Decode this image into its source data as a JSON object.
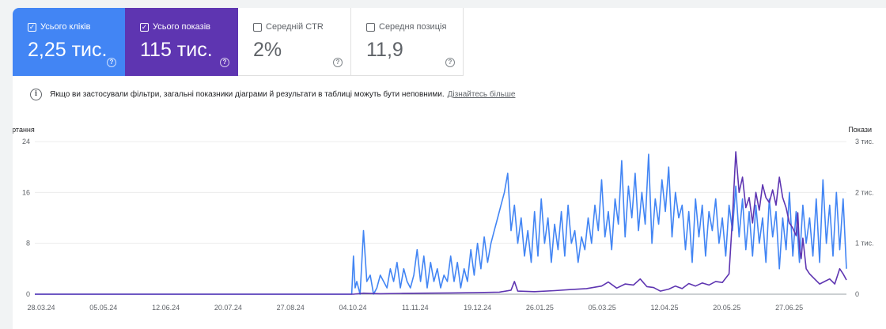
{
  "metrics": [
    {
      "label": "Усього кліків",
      "value": "2,25 тис.",
      "checked": true,
      "color": "#4285f4"
    },
    {
      "label": "Усього показів",
      "value": "115 тис.",
      "checked": true,
      "color": "#5e35b1"
    },
    {
      "label": "Середній CTR",
      "value": "2%",
      "checked": false
    },
    {
      "label": "Середня позиція",
      "value": "11,9",
      "checked": false
    }
  ],
  "notice": {
    "text": "Якщо ви застосували фільтри, загальні показники діаграми й результати в таблиці можуть бути неповними.",
    "link": "Дізнайтесь більше"
  },
  "chart_data": {
    "type": "line",
    "left_axis": {
      "label": "Звертання",
      "ticks": [
        "0",
        "8",
        "16",
        "24"
      ],
      "values": [
        0,
        8,
        16,
        24
      ],
      "ylim": [
        0,
        24
      ]
    },
    "right_axis": {
      "label": "Покази",
      "ticks": [
        "0",
        "1 тис.",
        "2 тис.",
        "3 тис."
      ],
      "values": [
        0,
        1000,
        2000,
        3000
      ],
      "ylim": [
        0,
        3000
      ]
    },
    "x_ticks": [
      "28.03.24",
      "05.05.24",
      "12.06.24",
      "20.07.24",
      "27.08.24",
      "04.10.24",
      "11.11.24",
      "19.12.24",
      "26.01.25",
      "05.03.25",
      "12.04.25",
      "20.05.25",
      "27.06.25"
    ],
    "x_range": [
      "2024-03-28",
      "2025-07-25"
    ],
    "grid": true,
    "series": [
      {
        "name": "Усього кліків",
        "axis": "left",
        "color": "#4285f4",
        "points": [
          [
            "2024-03-28",
            0
          ],
          [
            "2024-10-03",
            0
          ],
          [
            "2024-10-04",
            6
          ],
          [
            "2024-10-05",
            1
          ],
          [
            "2024-10-06",
            2
          ],
          [
            "2024-10-08",
            0
          ],
          [
            "2024-10-10",
            10
          ],
          [
            "2024-10-12",
            2
          ],
          [
            "2024-10-14",
            3
          ],
          [
            "2024-10-16",
            0
          ],
          [
            "2024-10-18",
            1
          ],
          [
            "2024-10-20",
            3
          ],
          [
            "2024-10-22",
            2
          ],
          [
            "2024-10-24",
            1
          ],
          [
            "2024-10-26",
            4
          ],
          [
            "2024-10-28",
            2
          ],
          [
            "2024-10-30",
            5
          ],
          [
            "2024-11-01",
            1
          ],
          [
            "2024-11-03",
            4
          ],
          [
            "2024-11-05",
            2
          ],
          [
            "2024-11-07",
            1
          ],
          [
            "2024-11-09",
            3
          ],
          [
            "2024-11-11",
            7
          ],
          [
            "2024-11-13",
            2
          ],
          [
            "2024-11-15",
            6
          ],
          [
            "2024-11-17",
            1
          ],
          [
            "2024-11-19",
            5
          ],
          [
            "2024-11-21",
            2
          ],
          [
            "2024-11-23",
            4
          ],
          [
            "2024-11-25",
            1
          ],
          [
            "2024-11-27",
            3
          ],
          [
            "2024-11-29",
            2
          ],
          [
            "2024-12-01",
            6
          ],
          [
            "2024-12-03",
            2
          ],
          [
            "2024-12-05",
            5
          ],
          [
            "2024-12-07",
            1
          ],
          [
            "2024-12-09",
            4
          ],
          [
            "2024-12-11",
            2
          ],
          [
            "2024-12-13",
            7
          ],
          [
            "2024-12-15",
            3
          ],
          [
            "2024-12-17",
            8
          ],
          [
            "2024-12-19",
            4
          ],
          [
            "2024-12-21",
            9
          ],
          [
            "2024-12-23",
            5
          ],
          [
            "2024-12-25",
            8
          ],
          [
            "2024-12-27",
            10
          ],
          [
            "2024-12-29",
            12
          ],
          [
            "2024-12-31",
            14
          ],
          [
            "2025-01-02",
            16
          ],
          [
            "2025-01-04",
            19
          ],
          [
            "2025-01-06",
            10
          ],
          [
            "2025-01-08",
            14
          ],
          [
            "2025-01-10",
            8
          ],
          [
            "2025-01-12",
            12
          ],
          [
            "2025-01-14",
            6
          ],
          [
            "2025-01-16",
            10
          ],
          [
            "2025-01-18",
            5
          ],
          [
            "2025-01-20",
            13
          ],
          [
            "2025-01-22",
            6
          ],
          [
            "2025-01-24",
            15
          ],
          [
            "2025-01-26",
            8
          ],
          [
            "2025-01-28",
            12
          ],
          [
            "2025-01-30",
            5
          ],
          [
            "2025-02-01",
            11
          ],
          [
            "2025-02-03",
            7
          ],
          [
            "2025-02-05",
            13
          ],
          [
            "2025-02-07",
            6
          ],
          [
            "2025-02-09",
            14
          ],
          [
            "2025-02-11",
            8
          ],
          [
            "2025-02-13",
            10
          ],
          [
            "2025-02-15",
            5
          ],
          [
            "2025-02-17",
            9
          ],
          [
            "2025-02-19",
            7
          ],
          [
            "2025-02-21",
            12
          ],
          [
            "2025-02-23",
            8
          ],
          [
            "2025-02-25",
            14
          ],
          [
            "2025-02-27",
            10
          ],
          [
            "2025-03-01",
            18
          ],
          [
            "2025-03-03",
            9
          ],
          [
            "2025-03-05",
            13
          ],
          [
            "2025-03-07",
            7
          ],
          [
            "2025-03-09",
            15
          ],
          [
            "2025-03-11",
            11
          ],
          [
            "2025-03-13",
            21
          ],
          [
            "2025-03-15",
            9
          ],
          [
            "2025-03-17",
            17
          ],
          [
            "2025-03-19",
            12
          ],
          [
            "2025-03-21",
            19
          ],
          [
            "2025-03-23",
            10
          ],
          [
            "2025-03-25",
            16
          ],
          [
            "2025-03-27",
            11
          ],
          [
            "2025-03-29",
            22
          ],
          [
            "2025-03-31",
            8
          ],
          [
            "2025-04-02",
            15
          ],
          [
            "2025-04-04",
            11
          ],
          [
            "2025-04-06",
            18
          ],
          [
            "2025-04-08",
            13
          ],
          [
            "2025-04-10",
            20
          ],
          [
            "2025-04-12",
            9
          ],
          [
            "2025-04-14",
            16
          ],
          [
            "2025-04-16",
            12
          ],
          [
            "2025-04-18",
            14
          ],
          [
            "2025-04-20",
            7
          ],
          [
            "2025-04-22",
            13
          ],
          [
            "2025-04-24",
            5
          ],
          [
            "2025-04-26",
            15
          ],
          [
            "2025-04-28",
            9
          ],
          [
            "2025-04-30",
            14
          ],
          [
            "2025-05-02",
            6
          ],
          [
            "2025-05-04",
            13
          ],
          [
            "2025-05-06",
            10
          ],
          [
            "2025-05-08",
            15
          ],
          [
            "2025-05-10",
            8
          ],
          [
            "2025-05-12",
            12
          ],
          [
            "2025-05-14",
            6
          ],
          [
            "2025-05-16",
            14
          ],
          [
            "2025-05-18",
            10
          ],
          [
            "2025-05-20",
            17
          ],
          [
            "2025-05-22",
            9
          ],
          [
            "2025-05-24",
            15
          ],
          [
            "2025-05-26",
            7
          ],
          [
            "2025-05-28",
            13
          ],
          [
            "2025-05-30",
            6
          ],
          [
            "2025-06-01",
            14
          ],
          [
            "2025-06-03",
            8
          ],
          [
            "2025-06-05",
            12
          ],
          [
            "2025-06-07",
            5
          ],
          [
            "2025-06-09",
            15
          ],
          [
            "2025-06-11",
            9
          ],
          [
            "2025-06-13",
            13
          ],
          [
            "2025-06-15",
            4
          ],
          [
            "2025-06-17",
            12
          ],
          [
            "2025-06-19",
            7
          ],
          [
            "2025-06-21",
            16
          ],
          [
            "2025-06-23",
            6
          ],
          [
            "2025-06-25",
            13
          ],
          [
            "2025-06-27",
            5
          ],
          [
            "2025-06-29",
            14
          ],
          [
            "2025-07-01",
            8
          ],
          [
            "2025-07-03",
            12
          ],
          [
            "2025-07-05",
            6
          ],
          [
            "2025-07-07",
            15
          ],
          [
            "2025-07-09",
            5
          ],
          [
            "2025-07-11",
            18
          ],
          [
            "2025-07-13",
            8
          ],
          [
            "2025-07-15",
            14
          ],
          [
            "2025-07-17",
            6
          ],
          [
            "2025-07-19",
            16
          ],
          [
            "2025-07-21",
            7
          ],
          [
            "2025-07-23",
            15
          ],
          [
            "2025-07-25",
            4
          ]
        ]
      },
      {
        "name": "Усього показів",
        "axis": "right",
        "color": "#5e35b1",
        "points": [
          [
            "2024-03-28",
            0
          ],
          [
            "2024-10-04",
            0
          ],
          [
            "2024-10-10",
            20
          ],
          [
            "2024-10-20",
            10
          ],
          [
            "2024-11-01",
            15
          ],
          [
            "2024-11-15",
            20
          ],
          [
            "2024-12-01",
            25
          ],
          [
            "2024-12-15",
            30
          ],
          [
            "2024-12-30",
            40
          ],
          [
            "2025-01-06",
            80
          ],
          [
            "2025-01-08",
            250
          ],
          [
            "2025-01-10",
            60
          ],
          [
            "2025-01-20",
            50
          ],
          [
            "2025-02-01",
            70
          ],
          [
            "2025-02-10",
            90
          ],
          [
            "2025-02-20",
            110
          ],
          [
            "2025-03-01",
            160
          ],
          [
            "2025-03-05",
            240
          ],
          [
            "2025-03-10",
            120
          ],
          [
            "2025-03-15",
            200
          ],
          [
            "2025-03-20",
            180
          ],
          [
            "2025-03-24",
            300
          ],
          [
            "2025-03-28",
            150
          ],
          [
            "2025-04-01",
            130
          ],
          [
            "2025-04-05",
            60
          ],
          [
            "2025-04-10",
            100
          ],
          [
            "2025-04-14",
            160
          ],
          [
            "2025-04-18",
            110
          ],
          [
            "2025-04-22",
            210
          ],
          [
            "2025-04-26",
            160
          ],
          [
            "2025-04-30",
            220
          ],
          [
            "2025-05-04",
            180
          ],
          [
            "2025-05-08",
            250
          ],
          [
            "2025-05-12",
            230
          ],
          [
            "2025-05-16",
            400
          ],
          [
            "2025-05-18",
            1500
          ],
          [
            "2025-05-20",
            2800
          ],
          [
            "2025-05-22",
            2000
          ],
          [
            "2025-05-24",
            2300
          ],
          [
            "2025-05-26",
            1700
          ],
          [
            "2025-05-28",
            1900
          ],
          [
            "2025-05-30",
            1400
          ],
          [
            "2025-06-01",
            2000
          ],
          [
            "2025-06-03",
            1650
          ],
          [
            "2025-06-05",
            2150
          ],
          [
            "2025-06-07",
            1900
          ],
          [
            "2025-06-09",
            1800
          ],
          [
            "2025-06-11",
            2050
          ],
          [
            "2025-06-13",
            1750
          ],
          [
            "2025-06-15",
            2300
          ],
          [
            "2025-06-17",
            1900
          ],
          [
            "2025-06-19",
            1700
          ],
          [
            "2025-06-21",
            1400
          ],
          [
            "2025-06-23",
            1300
          ],
          [
            "2025-06-25",
            1150
          ],
          [
            "2025-06-26",
            1600
          ],
          [
            "2025-06-27",
            900
          ],
          [
            "2025-06-28",
            700
          ],
          [
            "2025-06-29",
            1100
          ],
          [
            "2025-07-01",
            500
          ],
          [
            "2025-07-03",
            400
          ],
          [
            "2025-07-06",
            300
          ],
          [
            "2025-07-09",
            200
          ],
          [
            "2025-07-12",
            250
          ],
          [
            "2025-07-15",
            300
          ],
          [
            "2025-07-18",
            200
          ],
          [
            "2025-07-21",
            500
          ],
          [
            "2025-07-23",
            400
          ],
          [
            "2025-07-25",
            280
          ]
        ]
      }
    ]
  }
}
